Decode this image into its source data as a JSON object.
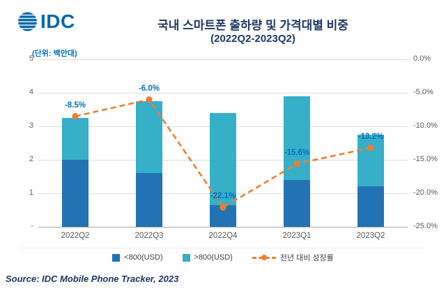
{
  "logo": {
    "text": "IDC"
  },
  "title": "국내 스마트폰 출하량 및 가격대별 비중",
  "subtitle": "(2022Q2-2023Q2)",
  "unit_label": "(단위: 백만대)",
  "source": "Source: IDC Mobile Phone Tracker, 2023",
  "colors": {
    "bar_low": "#2173B4",
    "bar_high": "#36AFC8",
    "line": "#ED7D31",
    "data_label": "#0070C0",
    "title_navy": "#1F3864",
    "axis_text": "#595959",
    "logo_blue": "#0067B1"
  },
  "chart_data": {
    "type": "bar",
    "subtype": "stacked bars with overlaid dashed line (right axis)",
    "title": "국내 스마트폰 출하량 및 가격대별 비중",
    "subtitle": "(2022Q2-2023Q2)",
    "unit": "백만대",
    "categories": [
      "2022Q2",
      "2022Q3",
      "2022Q4",
      "2023Q1",
      "2023Q2"
    ],
    "series": [
      {
        "name": "<800(USD)",
        "type": "bar",
        "axis": "left",
        "values": [
          2.0,
          1.6,
          0.65,
          1.4,
          1.2
        ]
      },
      {
        "name": ">800(USD)",
        "type": "bar",
        "axis": "left",
        "values": [
          1.25,
          2.15,
          2.75,
          2.5,
          1.55
        ]
      },
      {
        "name": "전년 대비 성장률",
        "type": "line",
        "axis": "right",
        "values": [
          -8.5,
          -6.0,
          -22.1,
          -15.6,
          -13.2
        ],
        "labels": [
          "-8.5%",
          "-6.0%",
          "-22.1%",
          "-15.6%",
          "-13.2%"
        ]
      }
    ],
    "left_axis": {
      "min": 0,
      "max": 5,
      "ticks": [
        "5",
        "4",
        "3",
        "2",
        "1",
        "-"
      ]
    },
    "right_axis": {
      "min": -25,
      "max": 0,
      "ticks": [
        "0.0%",
        "-5.0%",
        "-10.0%",
        "-15.0%",
        "-20.0%",
        "-25.0%"
      ]
    },
    "grid": true,
    "legend_position": "bottom"
  },
  "legend": {
    "items": [
      {
        "label": "<800(USD)",
        "swatch": "#2173B4",
        "type": "square"
      },
      {
        "label": ">800(USD)",
        "swatch": "#36AFC8",
        "type": "square"
      },
      {
        "label": "전년 대비 성장률",
        "swatch": "#ED7D31",
        "type": "dashed-line"
      }
    ]
  }
}
